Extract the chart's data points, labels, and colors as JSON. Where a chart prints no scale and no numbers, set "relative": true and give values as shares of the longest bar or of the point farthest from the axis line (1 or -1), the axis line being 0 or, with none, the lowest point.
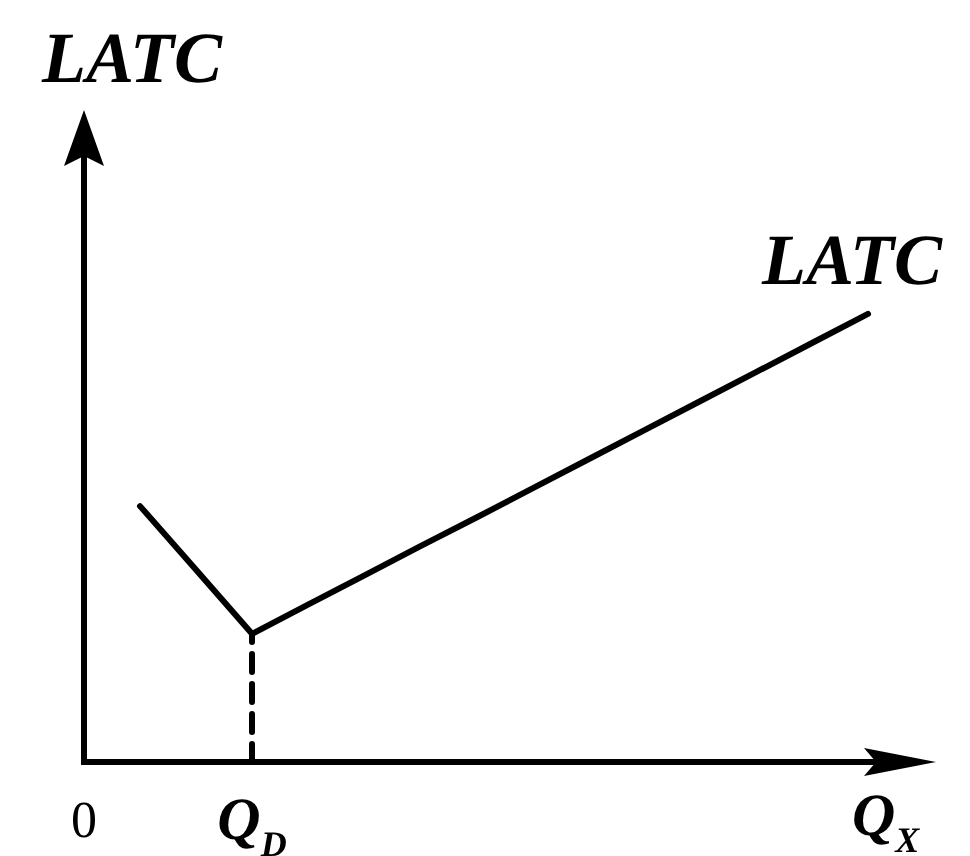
{
  "chart_data": {
    "type": "line",
    "xlabel": "Q$_{X}$",
    "ylabel": "LATC",
    "relative": true,
    "marker": "none",
    "categories": [
      "0",
      null,
      null,
      "Q$_{D}$",
      null,
      null,
      null,
      null,
      null,
      null,
      null,
      null,
      null,
      null,
      null,
      null
    ],
    "series": [
      {
        "name": "LATC",
        "color": "#000000",
        "values": [
          null,
          0.571,
          0.429,
          0.286,
          0.351,
          0.416,
          0.481,
          0.545,
          0.61,
          0.675,
          0.74,
          0.805,
          0.87,
          0.935,
          1,
          null
        ],
        "line_style": "solid"
      },
      {
        "color": "#000000",
        "x": [
          "Q$_{D}$",
          "Q$_{D}$"
        ],
        "values": [
          0,
          0.286
        ],
        "line_style": "dashed"
      }
    ]
  }
}
